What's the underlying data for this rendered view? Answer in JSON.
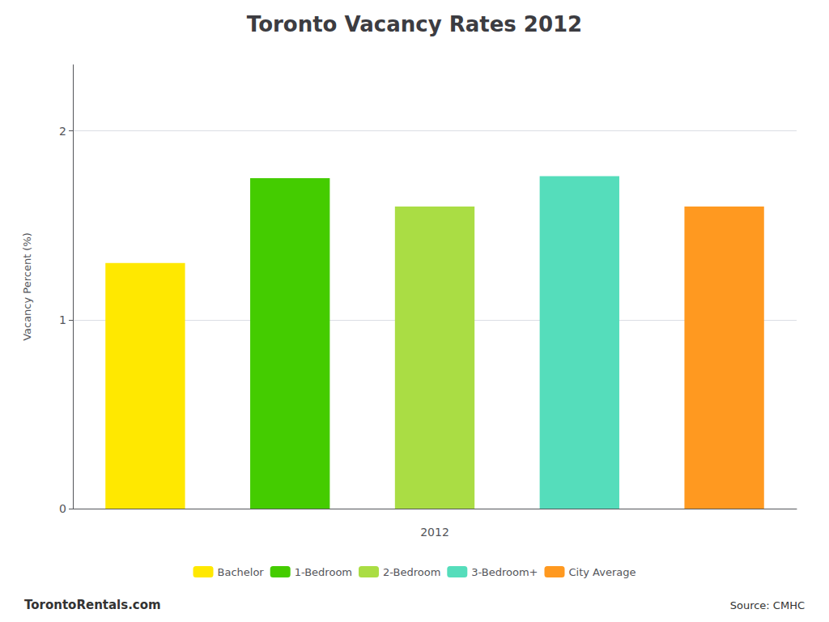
{
  "chart_data": {
    "type": "bar",
    "title": "Toronto Vacancy Rates 2012",
    "categories": [
      "Bachelor",
      "1-Bedroom",
      "2-Bedroom",
      "3-Bedroom+",
      "City Average"
    ],
    "values": [
      1.3,
      1.75,
      1.6,
      1.76,
      1.6
    ],
    "colors": [
      "#FFE800",
      "#44CC00",
      "#AADD44",
      "#55DDBB",
      "#FF9920"
    ],
    "xlabel": "2012",
    "ylabel": "Vacancy Percent (%)",
    "ylim": [
      0,
      2.35
    ],
    "yticks": [
      0,
      1,
      2
    ],
    "grid": true,
    "legend": "bottom",
    "tick_labels": "y",
    "annotations": [
      "TorontoRentals.com",
      "Source: CMHC"
    ]
  }
}
